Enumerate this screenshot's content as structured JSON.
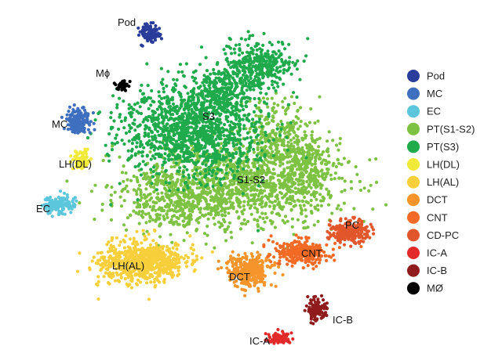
{
  "chart_data": {
    "type": "scatter",
    "title": "",
    "xlabel": "",
    "ylabel": "",
    "axes": "none",
    "grid": false,
    "legend_position": "right",
    "legend": [
      {
        "name": "Pod",
        "color": "#2a3d9a"
      },
      {
        "name": "MC",
        "color": "#3f6fbf"
      },
      {
        "name": "EC",
        "color": "#5bc6dc"
      },
      {
        "name": "PT(S1-S2)",
        "color": "#7dc242"
      },
      {
        "name": "PT(S3)",
        "color": "#1faa4b"
      },
      {
        "name": "LH(DL)",
        "color": "#f2ea3a"
      },
      {
        "name": "LH(AL)",
        "color": "#f7cf3a"
      },
      {
        "name": "DCT",
        "color": "#f5942a"
      },
      {
        "name": "CNT",
        "color": "#f26a25"
      },
      {
        "name": "CD-PC",
        "color": "#e2562b"
      },
      {
        "name": "IC-A",
        "color": "#e32a2a"
      },
      {
        "name": "IC-B",
        "color": "#8f1c1c"
      },
      {
        "name": "MØ",
        "color": "#000000"
      }
    ],
    "cluster_labels": [
      {
        "text": "Pod",
        "cluster": "Pod"
      },
      {
        "text": "Mϕ",
        "cluster": "MØ"
      },
      {
        "text": "MC",
        "cluster": "MC"
      },
      {
        "text": "S3",
        "cluster": "PT(S3)"
      },
      {
        "text": "LH(DL)",
        "cluster": "LH(DL)"
      },
      {
        "text": "S1-S2",
        "cluster": "PT(S1-S2)"
      },
      {
        "text": "EC",
        "cluster": "EC"
      },
      {
        "text": "PC",
        "cluster": "CD-PC"
      },
      {
        "text": "CNT",
        "cluster": "CNT"
      },
      {
        "text": "LH(AL)",
        "cluster": "LH(AL)"
      },
      {
        "text": "DCT",
        "cluster": "DCT"
      },
      {
        "text": "IC-B",
        "cluster": "IC-B"
      },
      {
        "text": "IC-A",
        "cluster": "IC-A"
      }
    ]
  }
}
